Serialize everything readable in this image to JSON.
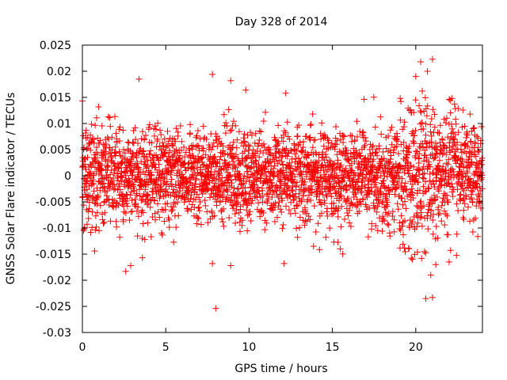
{
  "chart_data": {
    "type": "scatter",
    "title": "Day 328 of 2014",
    "xlabel": "GPS time / hours",
    "ylabel": "GNSS Solar Flare indicator / TECUs",
    "xlim": [
      0,
      24
    ],
    "ylim": [
      -0.03,
      0.025
    ],
    "x_ticks": [
      0,
      5,
      10,
      15,
      20
    ],
    "x_tick_labels": [
      "0",
      "5",
      "10",
      "15",
      "20"
    ],
    "y_ticks": [
      -0.03,
      -0.025,
      -0.02,
      -0.015,
      -0.01,
      -0.005,
      0,
      0.005,
      0.01,
      0.015,
      0.02,
      0.025
    ],
    "y_tick_labels": [
      "-0.03",
      "-0.025",
      "-0.02",
      "-0.015",
      "-0.01",
      "-0.005",
      "0",
      "0.005",
      "0.01",
      "0.015",
      "0.02",
      "0.025"
    ],
    "grid": false,
    "marker": "+",
    "color": "#ff0000",
    "series": [
      {
        "name": "solar flare indicator",
        "notable_points": [
          {
            "x": 0.0,
            "y": 0.0143
          },
          {
            "x": 0.1,
            "y": -0.0102
          },
          {
            "x": 1.0,
            "y": -0.0105
          },
          {
            "x": 2.6,
            "y": -0.0183
          },
          {
            "x": 2.9,
            "y": -0.0172
          },
          {
            "x": 3.4,
            "y": 0.0185
          },
          {
            "x": 3.6,
            "y": -0.0157
          },
          {
            "x": 7.8,
            "y": 0.0194
          },
          {
            "x": 7.8,
            "y": -0.0168
          },
          {
            "x": 8.0,
            "y": -0.0254
          },
          {
            "x": 8.9,
            "y": 0.0182
          },
          {
            "x": 8.9,
            "y": -0.0172
          },
          {
            "x": 9.8,
            "y": 0.0164
          },
          {
            "x": 12.2,
            "y": 0.0158
          },
          {
            "x": 12.1,
            "y": -0.0168
          },
          {
            "x": 19.8,
            "y": -0.016
          },
          {
            "x": 20.0,
            "y": 0.019
          },
          {
            "x": 20.3,
            "y": 0.0218
          },
          {
            "x": 20.6,
            "y": -0.0235
          },
          {
            "x": 20.7,
            "y": 0.02
          },
          {
            "x": 20.9,
            "y": -0.019
          },
          {
            "x": 21.0,
            "y": 0.0223
          },
          {
            "x": 21.0,
            "y": -0.0233
          },
          {
            "x": 21.2,
            "y": -0.017
          },
          {
            "x": 22.0,
            "y": -0.0165
          }
        ]
      }
    ]
  }
}
